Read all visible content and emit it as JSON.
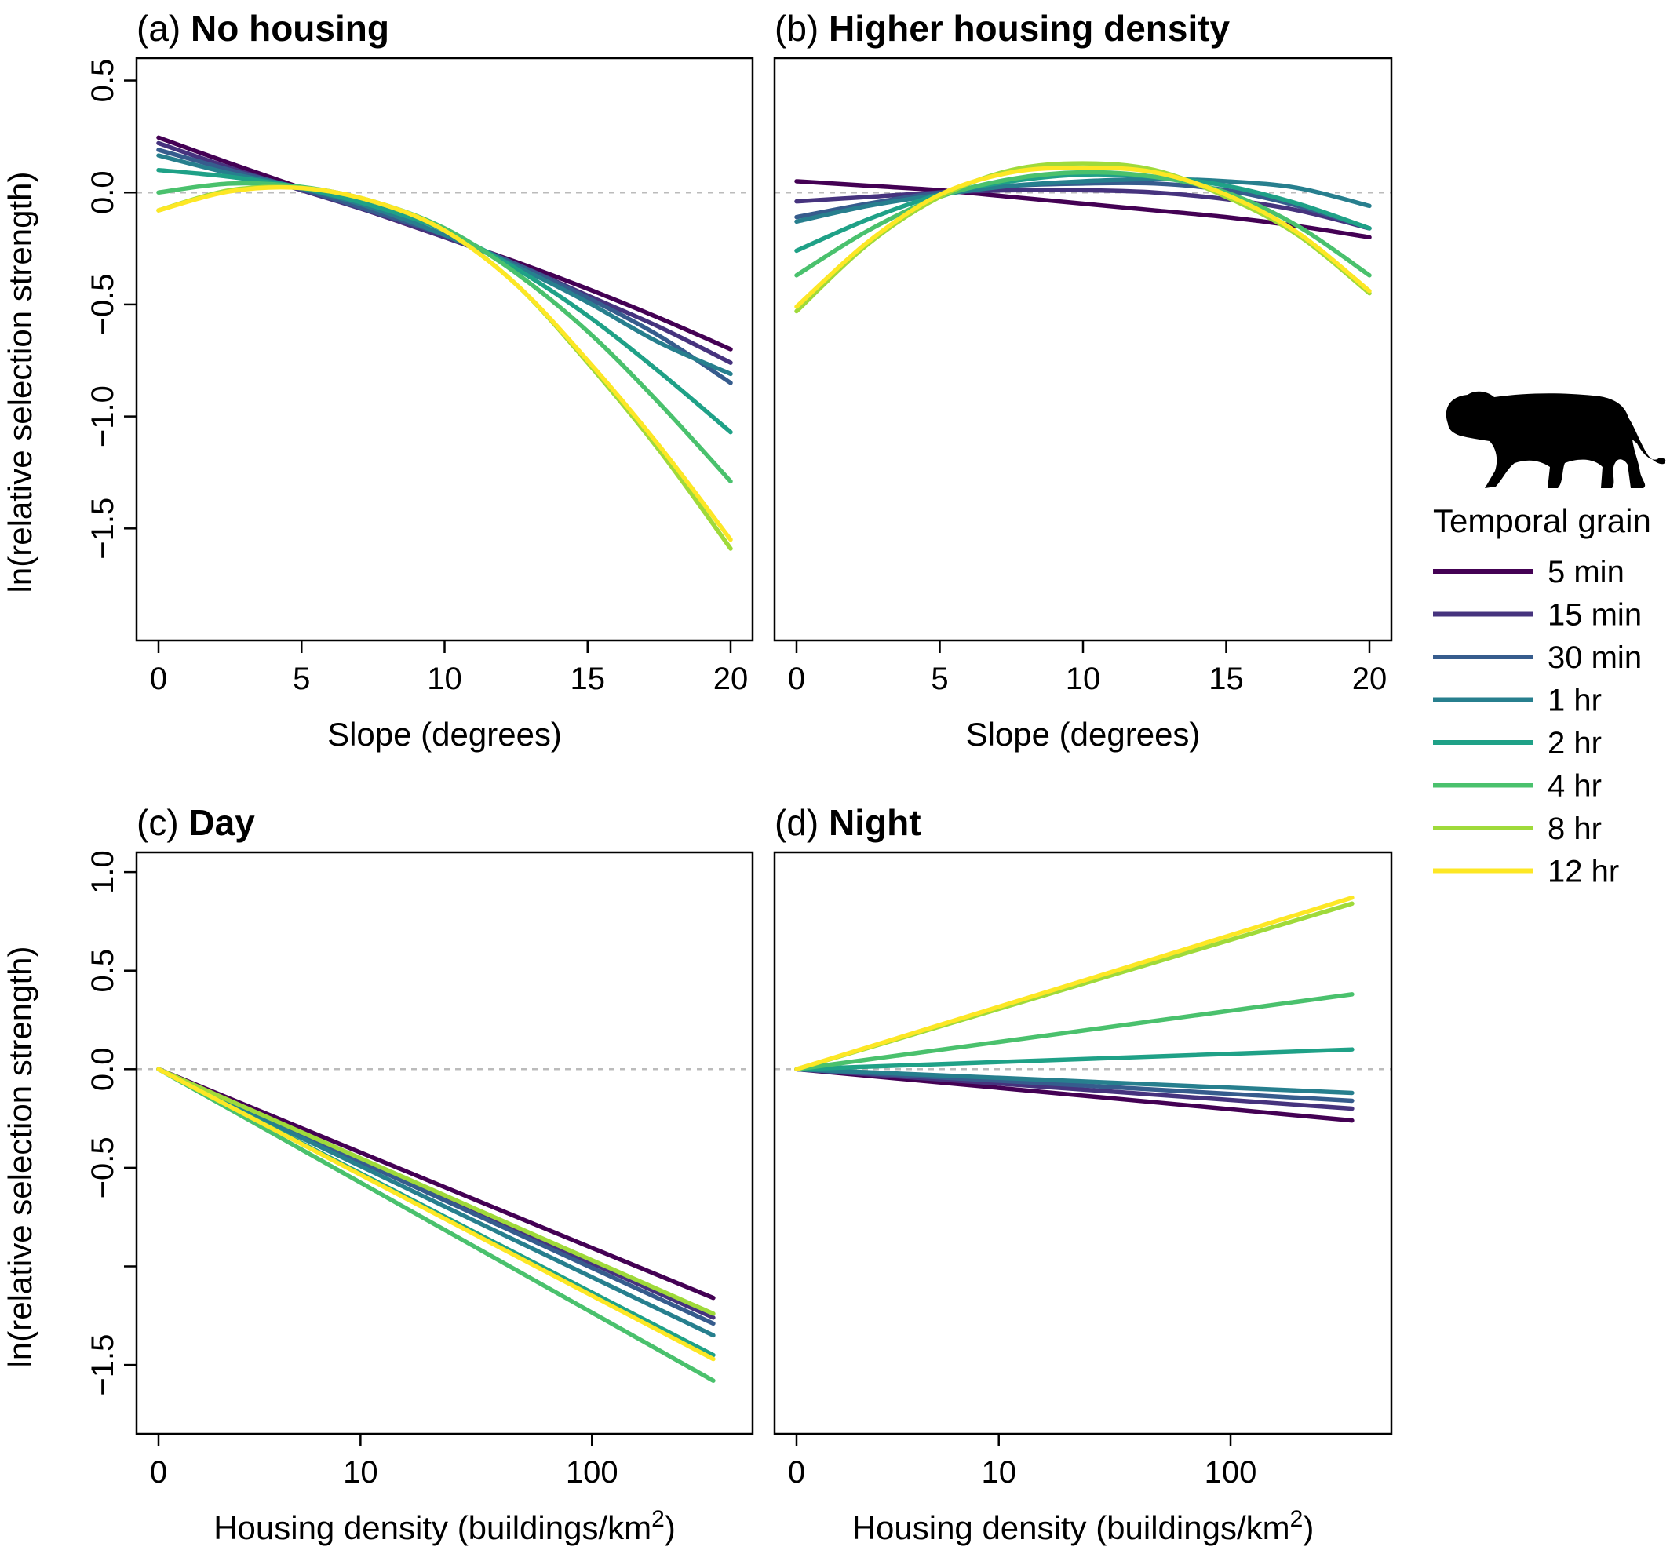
{
  "figure": {
    "ylabel": "ln(relative selection strength)",
    "legend": {
      "title": "Temporal grain",
      "placement": "right",
      "icon": "puma-silhouette-icon",
      "items": [
        {
          "label": "5 min",
          "color": "#440154"
        },
        {
          "label": "15 min",
          "color": "#46337E"
        },
        {
          "label": "30 min",
          "color": "#365C8D"
        },
        {
          "label": "1 hr",
          "color": "#277F8E"
        },
        {
          "label": "2 hr",
          "color": "#1FA187"
        },
        {
          "label": "4 hr",
          "color": "#4AC16D"
        },
        {
          "label": "8 hr",
          "color": "#9FDA3A"
        },
        {
          "label": "12 hr",
          "color": "#FDE725"
        }
      ]
    },
    "reference_line": {
      "y": 0,
      "style": "dashed",
      "color": "#bbbbbb"
    }
  },
  "chart_data": [
    {
      "type": "line",
      "panel": "(a)",
      "title": "No housing",
      "xlabel": "Slope (degrees)",
      "ylabel": "ln(relative selection strength)",
      "xlim": [
        0,
        20
      ],
      "ylim": [
        -2.0,
        0.6
      ],
      "xticks": [
        0,
        5,
        10,
        15,
        20
      ],
      "xtick_labels": [
        "0",
        "5",
        "10",
        "15",
        "20"
      ],
      "yticks": [
        0.5,
        0.0,
        -0.5,
        -1.0,
        -1.5
      ],
      "ytick_labels": [
        "0.5",
        "0.0",
        "−0.5",
        "−1.0",
        "−1.5"
      ],
      "x_scale": "linear",
      "grid": false,
      "x": [
        0,
        2.5,
        5,
        7.5,
        10,
        12.5,
        15,
        17.5,
        20
      ],
      "series": [
        {
          "name": "5 min",
          "values": [
            0.245,
            0.13,
            0.02,
            -0.09,
            -0.2,
            -0.31,
            -0.43,
            -0.56,
            -0.7
          ]
        },
        {
          "name": "15 min",
          "values": [
            0.22,
            0.11,
            0.01,
            -0.09,
            -0.2,
            -0.32,
            -0.46,
            -0.6,
            -0.76
          ]
        },
        {
          "name": "30 min",
          "values": [
            0.19,
            0.1,
            0.015,
            -0.085,
            -0.19,
            -0.32,
            -0.47,
            -0.64,
            -0.85
          ]
        },
        {
          "name": "1 hr",
          "values": [
            0.165,
            0.085,
            0.02,
            -0.07,
            -0.19,
            -0.33,
            -0.49,
            -0.67,
            -0.81
          ]
        },
        {
          "name": "2 hr",
          "values": [
            0.1,
            0.07,
            0.02,
            -0.06,
            -0.17,
            -0.34,
            -0.55,
            -0.8,
            -1.07
          ]
        },
        {
          "name": "4 hr",
          "values": [
            0.0,
            0.04,
            0.025,
            -0.04,
            -0.16,
            -0.36,
            -0.62,
            -0.94,
            -1.29
          ]
        },
        {
          "name": "8 hr",
          "values": [
            -0.08,
            0.01,
            0.02,
            -0.04,
            -0.17,
            -0.41,
            -0.76,
            -1.15,
            -1.59
          ]
        },
        {
          "name": "12 hr",
          "values": [
            -0.08,
            0.005,
            0.02,
            -0.04,
            -0.17,
            -0.41,
            -0.75,
            -1.13,
            -1.55
          ]
        }
      ]
    },
    {
      "type": "line",
      "panel": "(b)",
      "title": "Higher housing density",
      "xlabel": "Slope (degrees)",
      "ylabel": "",
      "xlim": [
        0,
        20
      ],
      "ylim": [
        -2.0,
        0.6
      ],
      "xticks": [
        0,
        5,
        10,
        15,
        20
      ],
      "xtick_labels": [
        "0",
        "5",
        "10",
        "15",
        "20"
      ],
      "yticks": [],
      "ytick_labels": [],
      "x_scale": "linear",
      "grid": false,
      "x": [
        0,
        2.5,
        5,
        7.5,
        10,
        12.5,
        15,
        17.5,
        20
      ],
      "series": [
        {
          "name": "5 min",
          "values": [
            0.05,
            0.03,
            0.01,
            -0.02,
            -0.05,
            -0.08,
            -0.11,
            -0.15,
            -0.2
          ]
        },
        {
          "name": "15 min",
          "values": [
            -0.04,
            -0.02,
            0.0,
            0.01,
            0.01,
            0.0,
            -0.03,
            -0.08,
            -0.16
          ]
        },
        {
          "name": "30 min",
          "values": [
            -0.11,
            -0.05,
            0.0,
            0.03,
            0.04,
            0.04,
            0.01,
            -0.06,
            -0.16
          ]
        },
        {
          "name": "1 hr",
          "values": [
            -0.13,
            -0.06,
            -0.01,
            0.03,
            0.05,
            0.06,
            0.05,
            0.02,
            -0.06
          ]
        },
        {
          "name": "2 hr",
          "values": [
            -0.26,
            -0.12,
            -0.01,
            0.05,
            0.08,
            0.07,
            0.03,
            -0.05,
            -0.16
          ]
        },
        {
          "name": "4 hr",
          "values": [
            -0.37,
            -0.17,
            -0.02,
            0.06,
            0.09,
            0.07,
            0.0,
            -0.15,
            -0.37
          ]
        },
        {
          "name": "8 hr",
          "values": [
            -0.53,
            -0.23,
            -0.02,
            0.1,
            0.13,
            0.1,
            -0.02,
            -0.19,
            -0.45
          ]
        },
        {
          "name": "12 hr",
          "values": [
            -0.51,
            -0.22,
            -0.01,
            0.09,
            0.11,
            0.09,
            -0.01,
            -0.18,
            -0.44
          ]
        }
      ]
    },
    {
      "type": "line",
      "panel": "(c)",
      "title": "Day",
      "xlabel": "Housing density (buildings/km²)",
      "ylabel": "ln(relative selection strength)",
      "xlim": [
        0,
        3.3
      ],
      "ylim": [
        -1.85,
        1.1
      ],
      "xticks": [
        0,
        1.165,
        2.5
      ],
      "xtick_labels": [
        "0",
        "10",
        "100"
      ],
      "yticks": [
        1.0,
        0.5,
        0.0,
        -0.5,
        -1.0,
        -1.5
      ],
      "ytick_labels": [
        "1.0",
        "0.5",
        "0.0",
        "−0.5",
        "",
        "−1.5"
      ],
      "x_scale": "log (plotted as ln(1 + density))",
      "grid": false,
      "x": [
        0,
        3.2
      ],
      "series": [
        {
          "name": "5 min",
          "values": [
            0,
            -1.16
          ]
        },
        {
          "name": "15 min",
          "values": [
            0,
            -1.26
          ]
        },
        {
          "name": "30 min",
          "values": [
            0,
            -1.29
          ]
        },
        {
          "name": "1 hr",
          "values": [
            0,
            -1.35
          ]
        },
        {
          "name": "2 hr",
          "values": [
            0,
            -1.45
          ]
        },
        {
          "name": "4 hr",
          "values": [
            0,
            -1.58
          ]
        },
        {
          "name": "8 hr",
          "values": [
            0,
            -1.24
          ]
        },
        {
          "name": "12 hr",
          "values": [
            0,
            -1.47
          ]
        }
      ]
    },
    {
      "type": "line",
      "panel": "(d)",
      "title": "Night",
      "xlabel": "Housing density (buildings/km²)",
      "ylabel": "",
      "xlim": [
        0,
        3.3
      ],
      "ylim": [
        -1.85,
        1.1
      ],
      "xticks": [
        0,
        1.165,
        2.5
      ],
      "xtick_labels": [
        "0",
        "10",
        "100"
      ],
      "yticks": [],
      "ytick_labels": [],
      "x_scale": "log (plotted as ln(1 + density))",
      "grid": false,
      "x": [
        0,
        3.2
      ],
      "series": [
        {
          "name": "5 min",
          "values": [
            0,
            -0.26
          ]
        },
        {
          "name": "15 min",
          "values": [
            0,
            -0.2
          ]
        },
        {
          "name": "30 min",
          "values": [
            0,
            -0.16
          ]
        },
        {
          "name": "1 hr",
          "values": [
            0,
            -0.12
          ]
        },
        {
          "name": "2 hr",
          "values": [
            0,
            0.1
          ]
        },
        {
          "name": "4 hr",
          "values": [
            0,
            0.38
          ]
        },
        {
          "name": "8 hr",
          "values": [
            0,
            0.84
          ]
        },
        {
          "name": "12 hr",
          "values": [
            0,
            0.87
          ]
        }
      ]
    }
  ]
}
